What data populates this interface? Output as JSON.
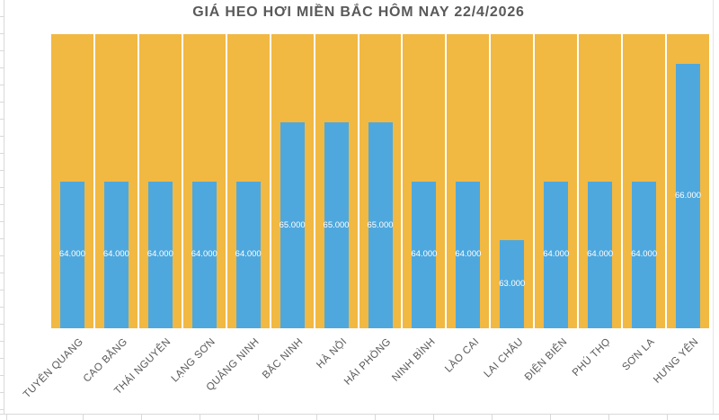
{
  "chart_data": {
    "type": "bar",
    "title": "GIÁ HEO HƠI MIỀN BẮC HÔM NAY 22/4/2026",
    "categories": [
      "TUYÊN QUANG",
      "CAO BẰNG",
      "THÁI NGUYÊN",
      "LẠNG SƠN",
      "QUẢNG NINH",
      "BẮC NINH",
      "HÀ NỘI",
      "HẢI PHÒNG",
      "NINH BÌNH",
      "LÀO CAI",
      "LAI CHÂU",
      "ĐIỆN BIÊN",
      "PHÚ THỌ",
      "SƠN LA",
      "HƯNG YÊN"
    ],
    "values": [
      64000,
      64000,
      64000,
      64000,
      64000,
      65000,
      65000,
      65000,
      64000,
      64000,
      63000,
      64000,
      64000,
      64000,
      66000
    ],
    "value_labels": [
      "64.000",
      "64.000",
      "64.000",
      "64.000",
      "64.000",
      "65.000",
      "65.000",
      "65.000",
      "64.000",
      "64.000",
      "63.000",
      "64.000",
      "64.000",
      "64.000",
      "66.000"
    ],
    "xlabel": "",
    "ylabel": "",
    "ylim": [
      61500,
      66500
    ],
    "grid": false,
    "legend": false,
    "value_label_position": "inside-center",
    "colors": {
      "bar": "#4FA8DD",
      "background_column": "#F1B842",
      "title_text": "#595959",
      "axis_label_text": "#595959",
      "value_label_text": "#FFFFFF",
      "column_gap": "#FFFFFF"
    }
  }
}
